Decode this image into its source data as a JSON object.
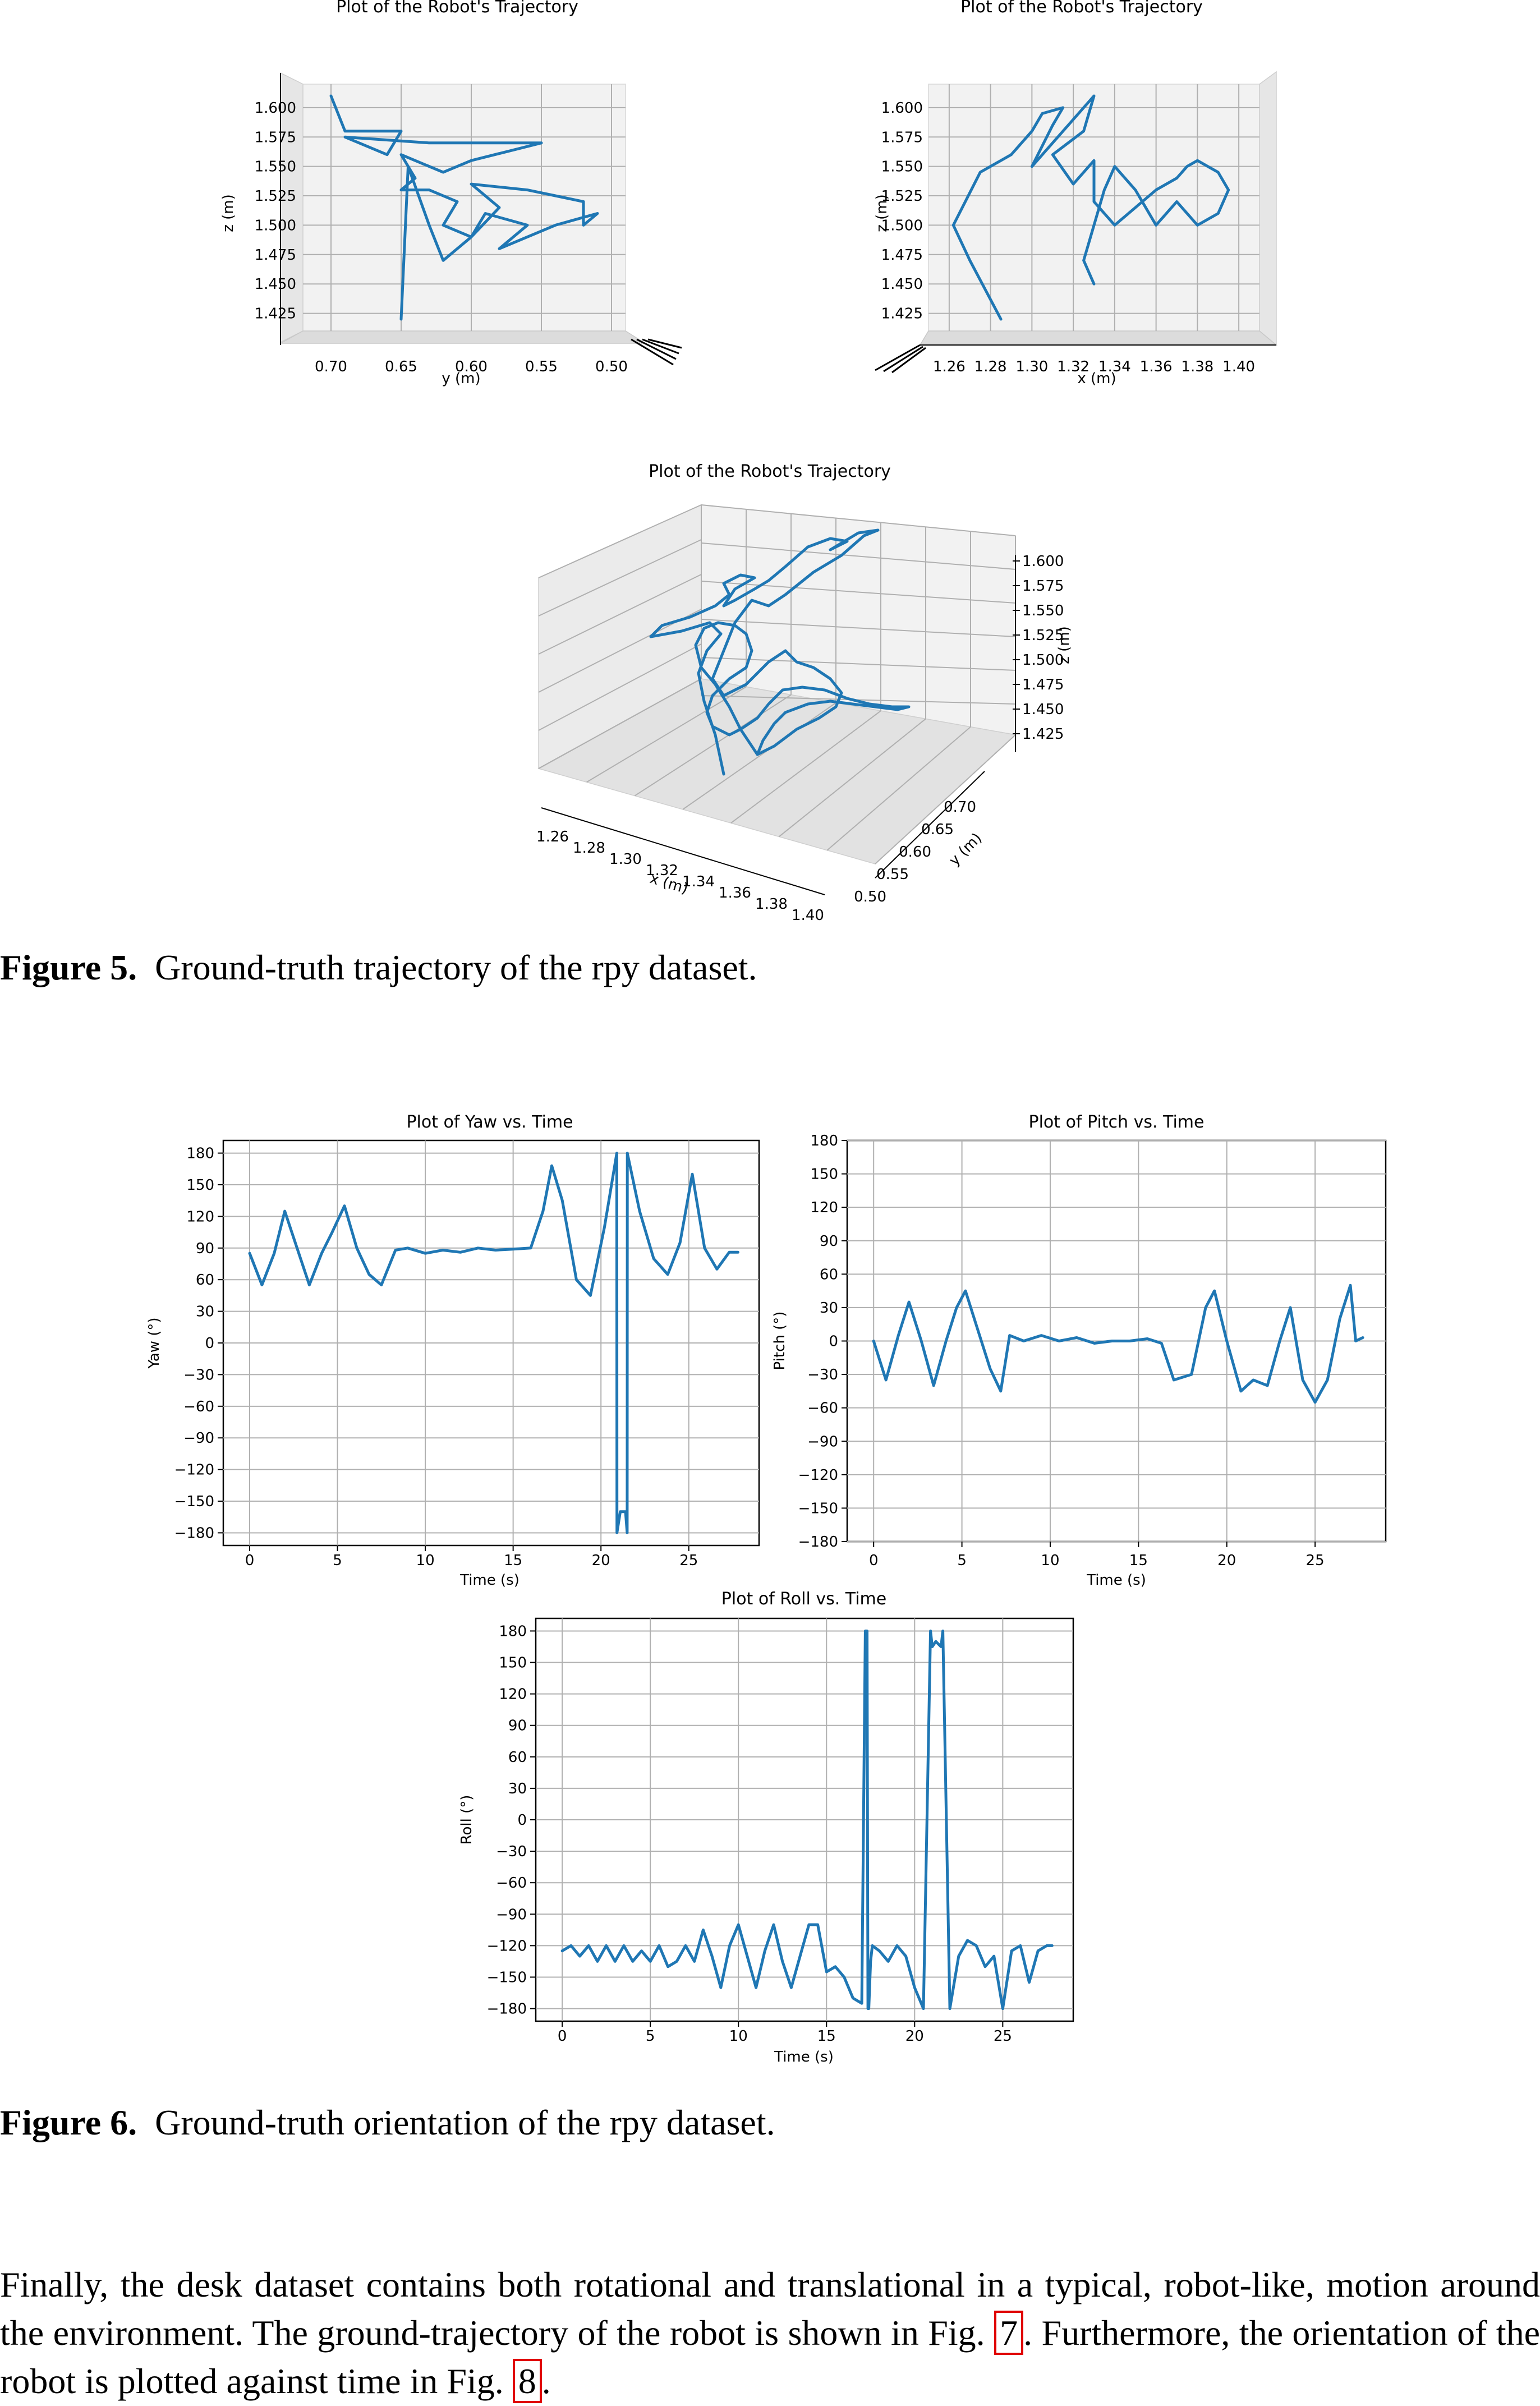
{
  "figure5": {
    "caption_label": "Figure 5.",
    "caption_text": "Ground-truth trajectory of the rpy dataset."
  },
  "figure6": {
    "caption_label": "Figure 6.",
    "caption_text": "Ground-truth orientation of the rpy dataset."
  },
  "paragraph": {
    "part1": "Finally, the desk dataset contains both rotational and translational in a typical, robot-like, motion around the environment. The ground-trajectory of the robot is shown in Fig.",
    "ref1": "7",
    "part2": ". Furthermore, the orientation of the robot is plotted against time in Fig.",
    "ref2": "8",
    "part3": "."
  },
  "chart_data": [
    {
      "type": "line",
      "panel": "trajectory-3d-yz-view",
      "title": "Plot of the Robot's Trajectory",
      "xlabel": "y (m)",
      "ylabel": "z (m)",
      "xticks": [
        "0.70",
        "0.65",
        "0.60",
        "0.55",
        "0.50"
      ],
      "yticks": [
        "1.600",
        "1.575",
        "1.550",
        "1.525",
        "1.500",
        "1.475",
        "1.450",
        "1.425"
      ],
      "xlim": [
        0.72,
        0.49
      ],
      "ylim": [
        1.41,
        1.62
      ],
      "grid": true,
      "series": [
        {
          "x": [
            0.7,
            0.69,
            0.65,
            0.66,
            0.69,
            0.63,
            0.55,
            0.6,
            0.62,
            0.64,
            0.65,
            0.64,
            0.65,
            0.63,
            0.61,
            0.62,
            0.6,
            0.58,
            0.6,
            0.56,
            0.54,
            0.52,
            0.52,
            0.51,
            0.54,
            0.58,
            0.56,
            0.59,
            0.6,
            0.62,
            0.63,
            0.645,
            0.65
          ],
          "y": [
            1.61,
            1.58,
            1.58,
            1.56,
            1.575,
            1.57,
            1.57,
            1.555,
            1.545,
            1.555,
            1.56,
            1.54,
            1.53,
            1.53,
            1.52,
            1.5,
            1.49,
            1.515,
            1.535,
            1.53,
            1.525,
            1.52,
            1.5,
            1.51,
            1.5,
            1.48,
            1.5,
            1.51,
            1.49,
            1.47,
            1.5,
            1.55,
            1.42
          ]
        }
      ]
    },
    {
      "type": "line",
      "panel": "trajectory-3d-xz-view",
      "title": "Plot of the Robot's Trajectory",
      "xlabel": "x (m)",
      "ylabel": "z (m)",
      "xticks": [
        "1.26",
        "1.28",
        "1.30",
        "1.32",
        "1.34",
        "1.36",
        "1.38",
        "1.40"
      ],
      "yticks": [
        "1.600",
        "1.575",
        "1.550",
        "1.525",
        "1.500",
        "1.475",
        "1.450",
        "1.425"
      ],
      "xlim": [
        1.25,
        1.41
      ],
      "ylim": [
        1.41,
        1.62
      ],
      "grid": true,
      "series": [
        {
          "x": [
            1.285,
            1.27,
            1.262,
            1.275,
            1.29,
            1.3,
            1.305,
            1.315,
            1.31,
            1.3,
            1.33,
            1.325,
            1.31,
            1.32,
            1.33,
            1.33,
            1.34,
            1.35,
            1.36,
            1.37,
            1.375,
            1.38,
            1.39,
            1.395,
            1.39,
            1.38,
            1.37,
            1.36,
            1.35,
            1.34,
            1.335,
            1.33,
            1.325,
            1.33
          ],
          "y": [
            1.42,
            1.47,
            1.5,
            1.545,
            1.56,
            1.58,
            1.595,
            1.6,
            1.585,
            1.55,
            1.61,
            1.58,
            1.56,
            1.535,
            1.555,
            1.52,
            1.5,
            1.515,
            1.53,
            1.54,
            1.55,
            1.555,
            1.545,
            1.53,
            1.51,
            1.5,
            1.52,
            1.5,
            1.53,
            1.55,
            1.53,
            1.5,
            1.47,
            1.45
          ]
        }
      ]
    },
    {
      "type": "line",
      "panel": "trajectory-3d-perspective",
      "title": "Plot of the Robot's Trajectory",
      "xlabel": "x (m)",
      "ylabel": "y (m)",
      "zlabel": "z (m)",
      "xticks": [
        "1.26",
        "1.28",
        "1.30",
        "1.32",
        "1.34",
        "1.36",
        "1.38",
        "1.40"
      ],
      "yticks": [
        "0.50",
        "0.55",
        "0.60",
        "0.65",
        "0.70"
      ],
      "zticks": [
        "1.600",
        "1.575",
        "1.550",
        "1.525",
        "1.500",
        "1.475",
        "1.450",
        "1.425"
      ],
      "grid": true
    },
    {
      "type": "line",
      "panel": "yaw",
      "title": "Plot of Yaw vs. Time",
      "xlabel": "Time (s)",
      "ylabel": "Yaw (°)",
      "xlim": [
        -1.5,
        29
      ],
      "ylim": [
        -192,
        192
      ],
      "xticks": [
        0,
        5,
        10,
        15,
        20,
        25
      ],
      "yticks": [
        180,
        150,
        120,
        90,
        60,
        30,
        0,
        -30,
        -60,
        -90,
        -120,
        -150,
        -180
      ],
      "grid": true,
      "series": [
        {
          "x": [
            0,
            0.7,
            1.4,
            2,
            2.7,
            3.4,
            4.1,
            4.7,
            5.4,
            6.1,
            6.8,
            7.5,
            8.3,
            9,
            10,
            11,
            12,
            13,
            14,
            15,
            16,
            16.7,
            17.2,
            17.8,
            18.6,
            19.4,
            20.2,
            20.9,
            20.91,
            21.1,
            21.4,
            21.49,
            21.5,
            22.2,
            23,
            23.8,
            24.5,
            25.2,
            25.9,
            26.6,
            27.3,
            27.8
          ],
          "y": [
            85,
            55,
            85,
            125,
            90,
            55,
            85,
            105,
            130,
            90,
            65,
            55,
            88,
            90,
            85,
            88,
            86,
            90,
            88,
            89,
            90,
            125,
            168,
            135,
            60,
            45,
            110,
            180,
            -180,
            -160,
            -160,
            -180,
            180,
            125,
            80,
            65,
            95,
            160,
            90,
            70,
            86,
            86
          ]
        }
      ]
    },
    {
      "type": "line",
      "panel": "pitch",
      "title": "Plot of Pitch vs. Time",
      "xlabel": "Time (s)",
      "ylabel": "Pitch (°)",
      "xlim": [
        -1.5,
        29
      ],
      "ylim": [
        -180,
        180
      ],
      "xticks": [
        0,
        5,
        10,
        15,
        20,
        25
      ],
      "yticks": [
        180,
        150,
        120,
        90,
        60,
        30,
        0,
        -30,
        -60,
        -90,
        -120,
        -150,
        -180
      ],
      "grid": true,
      "series": [
        {
          "x": [
            0,
            0.7,
            1.4,
            2,
            2.7,
            3.4,
            4.1,
            4.7,
            5.2,
            5.9,
            6.6,
            7.2,
            7.7,
            8.5,
            9.5,
            10.5,
            11.5,
            12.5,
            13.5,
            14.5,
            15.5,
            16.3,
            17,
            18,
            18.8,
            19.3,
            20,
            20.8,
            21.5,
            22.3,
            23,
            23.6,
            24.3,
            25,
            25.7,
            26.4,
            27,
            27.3,
            27.7
          ],
          "y": [
            0,
            -35,
            5,
            35,
            0,
            -40,
            0,
            30,
            45,
            10,
            -25,
            -45,
            5,
            0,
            5,
            0,
            3,
            -2,
            0,
            0,
            2,
            -2,
            -35,
            -30,
            30,
            45,
            0,
            -45,
            -35,
            -40,
            0,
            30,
            -35,
            -55,
            -35,
            20,
            50,
            0,
            3
          ]
        }
      ]
    },
    {
      "type": "line",
      "panel": "roll",
      "title": "Plot of Roll vs. Time",
      "xlabel": "Time (s)",
      "ylabel": "Roll (°)",
      "xlim": [
        -1.5,
        29
      ],
      "ylim": [
        -192,
        192
      ],
      "xticks": [
        0,
        5,
        10,
        15,
        20,
        25
      ],
      "yticks": [
        180,
        150,
        120,
        90,
        60,
        30,
        0,
        -30,
        -60,
        -90,
        -120,
        -150,
        -180
      ],
      "grid": true,
      "series": [
        {
          "x": [
            0,
            0.5,
            1,
            1.5,
            2,
            2.5,
            3,
            3.5,
            4,
            4.5,
            5,
            5.5,
            6,
            6.5,
            7,
            7.5,
            8,
            8.5,
            9,
            9.5,
            10,
            10.5,
            11,
            11.5,
            12,
            12.5,
            13,
            13.5,
            14,
            14.5,
            15,
            15.5,
            16,
            16.5,
            17,
            17.2,
            17.3,
            17.35,
            17.4,
            17.5,
            17.6,
            18,
            18.5,
            19,
            19.5,
            20,
            20.5,
            20.9,
            21,
            21.2,
            21.5,
            21.6,
            22,
            22.5,
            23,
            23.5,
            24,
            24.5,
            25,
            25.5,
            26,
            26.5,
            27,
            27.5,
            27.8
          ],
          "y": [
            -125,
            -120,
            -130,
            -120,
            -135,
            -120,
            -135,
            -120,
            -135,
            -125,
            -135,
            -120,
            -140,
            -135,
            -120,
            -135,
            -105,
            -130,
            -160,
            -120,
            -100,
            -130,
            -160,
            -125,
            -100,
            -135,
            -160,
            -130,
            -100,
            -100,
            -145,
            -140,
            -150,
            -170,
            -175,
            180,
            180,
            -180,
            -180,
            -135,
            -120,
            -125,
            -135,
            -120,
            -130,
            -160,
            -180,
            180,
            165,
            170,
            165,
            180,
            -180,
            -130,
            -115,
            -120,
            -140,
            -130,
            -180,
            -125,
            -120,
            -155,
            -125,
            -120,
            -120
          ]
        }
      ]
    }
  ]
}
